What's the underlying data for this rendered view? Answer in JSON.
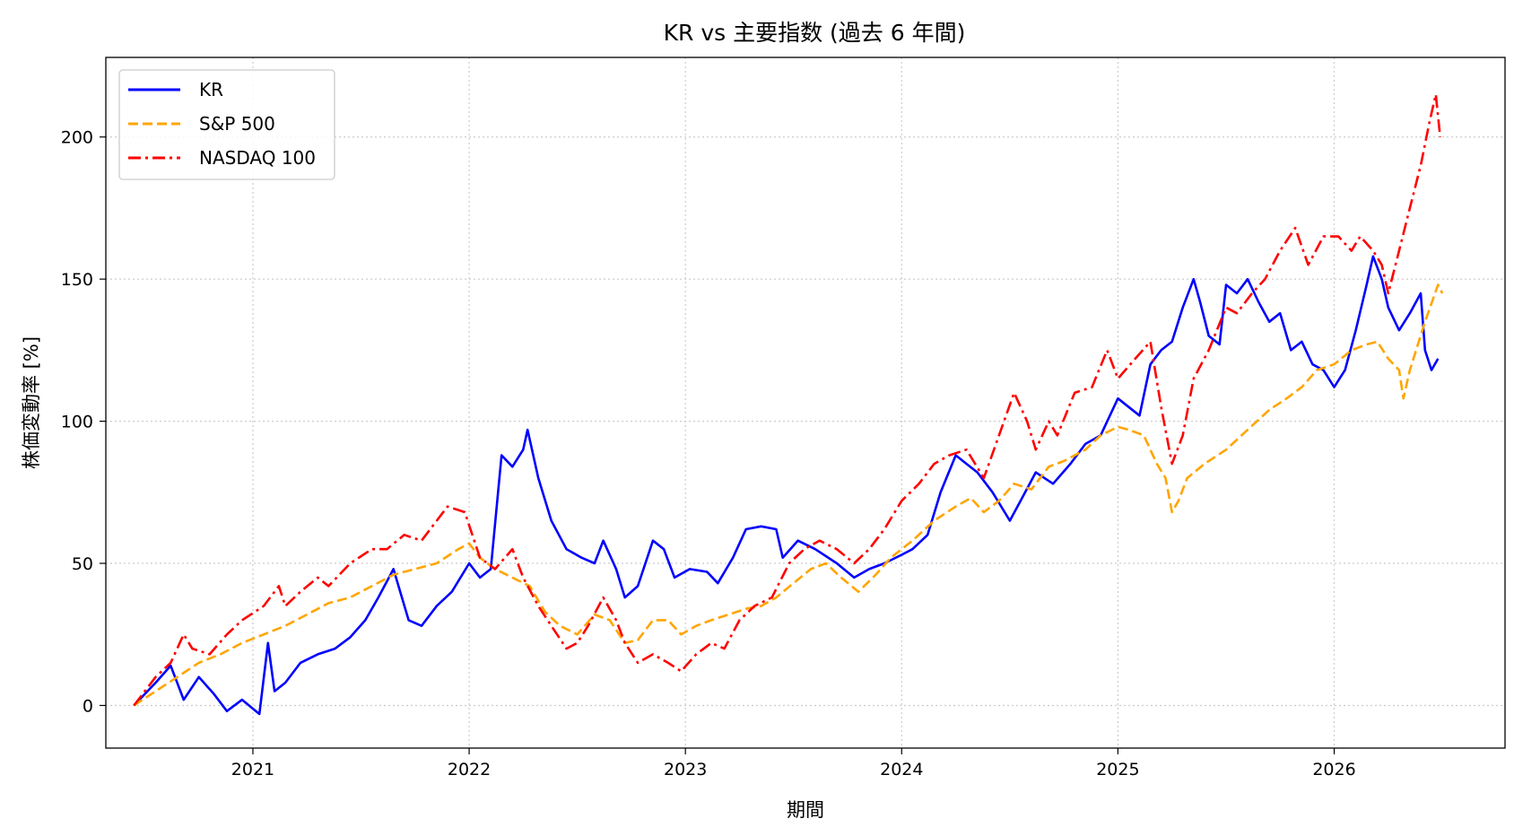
{
  "chart_data": {
    "type": "line",
    "title": "KR vs 主要指数 (過去 6 年間)",
    "xlabel": "期間",
    "ylabel": "株価変動率 [%]",
    "xlim": [
      2020.32,
      2026.79
    ],
    "ylim": [
      -15,
      228
    ],
    "x_ticks": [
      {
        "value": 2021,
        "label": "2021"
      },
      {
        "value": 2022,
        "label": "2022"
      },
      {
        "value": 2023,
        "label": "2023"
      },
      {
        "value": 2024,
        "label": "2024"
      },
      {
        "value": 2025,
        "label": "2025"
      },
      {
        "value": 2026,
        "label": "2026"
      }
    ],
    "y_ticks": [
      0,
      50,
      100,
      150,
      200
    ],
    "grid": true,
    "legend_position": "top-left",
    "series": [
      {
        "name": "KR",
        "color": "#0000ff",
        "style": "solid",
        "points": [
          [
            2020.45,
            0
          ],
          [
            2020.55,
            8
          ],
          [
            2020.62,
            14
          ],
          [
            2020.68,
            2
          ],
          [
            2020.75,
            10
          ],
          [
            2020.82,
            4
          ],
          [
            2020.88,
            -2
          ],
          [
            2020.95,
            2
          ],
          [
            2021.03,
            -3
          ],
          [
            2021.07,
            22
          ],
          [
            2021.1,
            5
          ],
          [
            2021.15,
            8
          ],
          [
            2021.22,
            15
          ],
          [
            2021.3,
            18
          ],
          [
            2021.38,
            20
          ],
          [
            2021.45,
            24
          ],
          [
            2021.52,
            30
          ],
          [
            2021.58,
            38
          ],
          [
            2021.65,
            48
          ],
          [
            2021.72,
            30
          ],
          [
            2021.78,
            28
          ],
          [
            2021.85,
            35
          ],
          [
            2021.92,
            40
          ],
          [
            2022.0,
            50
          ],
          [
            2022.05,
            45
          ],
          [
            2022.1,
            48
          ],
          [
            2022.15,
            88
          ],
          [
            2022.2,
            84
          ],
          [
            2022.25,
            90
          ],
          [
            2022.27,
            97
          ],
          [
            2022.32,
            80
          ],
          [
            2022.38,
            65
          ],
          [
            2022.45,
            55
          ],
          [
            2022.52,
            52
          ],
          [
            2022.58,
            50
          ],
          [
            2022.62,
            58
          ],
          [
            2022.68,
            48
          ],
          [
            2022.72,
            38
          ],
          [
            2022.78,
            42
          ],
          [
            2022.85,
            58
          ],
          [
            2022.9,
            55
          ],
          [
            2022.95,
            45
          ],
          [
            2023.02,
            48
          ],
          [
            2023.1,
            47
          ],
          [
            2023.15,
            43
          ],
          [
            2023.22,
            52
          ],
          [
            2023.28,
            62
          ],
          [
            2023.35,
            63
          ],
          [
            2023.42,
            62
          ],
          [
            2023.45,
            52
          ],
          [
            2023.52,
            58
          ],
          [
            2023.6,
            55
          ],
          [
            2023.7,
            50
          ],
          [
            2023.78,
            45
          ],
          [
            2023.85,
            48
          ],
          [
            2023.92,
            50
          ],
          [
            2024.0,
            53
          ],
          [
            2024.05,
            55
          ],
          [
            2024.12,
            60
          ],
          [
            2024.18,
            75
          ],
          [
            2024.25,
            88
          ],
          [
            2024.3,
            85
          ],
          [
            2024.35,
            82
          ],
          [
            2024.42,
            75
          ],
          [
            2024.5,
            65
          ],
          [
            2024.55,
            72
          ],
          [
            2024.62,
            82
          ],
          [
            2024.7,
            78
          ],
          [
            2024.78,
            85
          ],
          [
            2024.85,
            92
          ],
          [
            2024.92,
            95
          ],
          [
            2025.0,
            108
          ],
          [
            2025.05,
            105
          ],
          [
            2025.1,
            102
          ],
          [
            2025.15,
            120
          ],
          [
            2025.2,
            125
          ],
          [
            2025.25,
            128
          ],
          [
            2025.3,
            140
          ],
          [
            2025.35,
            150
          ],
          [
            2025.38,
            142
          ],
          [
            2025.42,
            130
          ],
          [
            2025.47,
            127
          ],
          [
            2025.5,
            148
          ],
          [
            2025.55,
            145
          ],
          [
            2025.6,
            150
          ],
          [
            2025.65,
            142
          ],
          [
            2025.7,
            135
          ],
          [
            2025.75,
            138
          ],
          [
            2025.8,
            125
          ],
          [
            2025.85,
            128
          ],
          [
            2025.9,
            120
          ],
          [
            2025.95,
            118
          ],
          [
            2026.0,
            112
          ],
          [
            2026.05,
            118
          ],
          [
            2026.1,
            132
          ],
          [
            2026.15,
            148
          ],
          [
            2026.18,
            158
          ],
          [
            2026.22,
            150
          ],
          [
            2026.25,
            140
          ],
          [
            2026.3,
            132
          ],
          [
            2026.35,
            138
          ],
          [
            2026.4,
            145
          ],
          [
            2026.42,
            125
          ],
          [
            2026.45,
            118
          ],
          [
            2026.48,
            122
          ]
        ]
      },
      {
        "name": "S&P 500",
        "color": "#ffa500",
        "style": "dashed",
        "points": [
          [
            2020.45,
            0
          ],
          [
            2020.55,
            5
          ],
          [
            2020.65,
            10
          ],
          [
            2020.75,
            15
          ],
          [
            2020.85,
            18
          ],
          [
            2020.95,
            22
          ],
          [
            2021.05,
            25
          ],
          [
            2021.15,
            28
          ],
          [
            2021.25,
            32
          ],
          [
            2021.35,
            36
          ],
          [
            2021.45,
            38
          ],
          [
            2021.55,
            42
          ],
          [
            2021.65,
            46
          ],
          [
            2021.75,
            48
          ],
          [
            2021.85,
            50
          ],
          [
            2021.95,
            55
          ],
          [
            2022.0,
            57
          ],
          [
            2022.05,
            52
          ],
          [
            2022.12,
            48
          ],
          [
            2022.2,
            45
          ],
          [
            2022.28,
            42
          ],
          [
            2022.35,
            33
          ],
          [
            2022.42,
            28
          ],
          [
            2022.5,
            25
          ],
          [
            2022.58,
            32
          ],
          [
            2022.65,
            30
          ],
          [
            2022.72,
            22
          ],
          [
            2022.78,
            23
          ],
          [
            2022.85,
            30
          ],
          [
            2022.92,
            30
          ],
          [
            2022.98,
            25
          ],
          [
            2023.05,
            28
          ],
          [
            2023.12,
            30
          ],
          [
            2023.2,
            32
          ],
          [
            2023.28,
            34
          ],
          [
            2023.35,
            35
          ],
          [
            2023.42,
            38
          ],
          [
            2023.5,
            43
          ],
          [
            2023.58,
            48
          ],
          [
            2023.65,
            50
          ],
          [
            2023.72,
            45
          ],
          [
            2023.8,
            40
          ],
          [
            2023.88,
            46
          ],
          [
            2023.95,
            52
          ],
          [
            2024.05,
            58
          ],
          [
            2024.15,
            65
          ],
          [
            2024.25,
            70
          ],
          [
            2024.32,
            73
          ],
          [
            2024.38,
            68
          ],
          [
            2024.45,
            72
          ],
          [
            2024.52,
            78
          ],
          [
            2024.6,
            76
          ],
          [
            2024.68,
            84
          ],
          [
            2024.75,
            86
          ],
          [
            2024.85,
            90
          ],
          [
            2024.92,
            95
          ],
          [
            2025.0,
            98
          ],
          [
            2025.05,
            97
          ],
          [
            2025.12,
            95
          ],
          [
            2025.18,
            85
          ],
          [
            2025.22,
            80
          ],
          [
            2025.25,
            68
          ],
          [
            2025.28,
            72
          ],
          [
            2025.32,
            80
          ],
          [
            2025.4,
            85
          ],
          [
            2025.5,
            90
          ],
          [
            2025.6,
            97
          ],
          [
            2025.7,
            104
          ],
          [
            2025.78,
            108
          ],
          [
            2025.85,
            112
          ],
          [
            2025.92,
            118
          ],
          [
            2026.0,
            120
          ],
          [
            2026.08,
            125
          ],
          [
            2026.15,
            127
          ],
          [
            2026.2,
            128
          ],
          [
            2026.25,
            122
          ],
          [
            2026.3,
            118
          ],
          [
            2026.32,
            108
          ],
          [
            2026.35,
            118
          ],
          [
            2026.42,
            135
          ],
          [
            2026.48,
            148
          ],
          [
            2026.5,
            145
          ]
        ]
      },
      {
        "name": "NASDAQ 100",
        "color": "#ff0000",
        "style": "dashdot",
        "points": [
          [
            2020.45,
            0
          ],
          [
            2020.55,
            10
          ],
          [
            2020.62,
            15
          ],
          [
            2020.68,
            25
          ],
          [
            2020.72,
            20
          ],
          [
            2020.8,
            18
          ],
          [
            2020.88,
            25
          ],
          [
            2020.95,
            30
          ],
          [
            2021.05,
            35
          ],
          [
            2021.12,
            42
          ],
          [
            2021.15,
            35
          ],
          [
            2021.22,
            40
          ],
          [
            2021.3,
            45
          ],
          [
            2021.35,
            42
          ],
          [
            2021.45,
            50
          ],
          [
            2021.55,
            55
          ],
          [
            2021.62,
            55
          ],
          [
            2021.7,
            60
          ],
          [
            2021.78,
            58
          ],
          [
            2021.85,
            65
          ],
          [
            2021.9,
            70
          ],
          [
            2021.98,
            68
          ],
          [
            2022.05,
            52
          ],
          [
            2022.12,
            48
          ],
          [
            2022.2,
            55
          ],
          [
            2022.25,
            45
          ],
          [
            2022.32,
            35
          ],
          [
            2022.38,
            28
          ],
          [
            2022.45,
            20
          ],
          [
            2022.5,
            22
          ],
          [
            2022.55,
            28
          ],
          [
            2022.62,
            38
          ],
          [
            2022.68,
            30
          ],
          [
            2022.72,
            22
          ],
          [
            2022.78,
            15
          ],
          [
            2022.85,
            18
          ],
          [
            2022.92,
            15
          ],
          [
            2022.98,
            12
          ],
          [
            2023.05,
            18
          ],
          [
            2023.12,
            22
          ],
          [
            2023.18,
            20
          ],
          [
            2023.25,
            30
          ],
          [
            2023.32,
            35
          ],
          [
            2023.4,
            38
          ],
          [
            2023.48,
            50
          ],
          [
            2023.55,
            55
          ],
          [
            2023.62,
            58
          ],
          [
            2023.7,
            55
          ],
          [
            2023.78,
            50
          ],
          [
            2023.85,
            55
          ],
          [
            2023.92,
            62
          ],
          [
            2024.0,
            72
          ],
          [
            2024.08,
            78
          ],
          [
            2024.15,
            85
          ],
          [
            2024.22,
            88
          ],
          [
            2024.3,
            90
          ],
          [
            2024.38,
            80
          ],
          [
            2024.45,
            95
          ],
          [
            2024.52,
            110
          ],
          [
            2024.58,
            100
          ],
          [
            2024.62,
            90
          ],
          [
            2024.68,
            100
          ],
          [
            2024.72,
            95
          ],
          [
            2024.8,
            110
          ],
          [
            2024.88,
            112
          ],
          [
            2024.95,
            125
          ],
          [
            2025.0,
            115
          ],
          [
            2025.08,
            122
          ],
          [
            2025.15,
            128
          ],
          [
            2025.2,
            105
          ],
          [
            2025.25,
            85
          ],
          [
            2025.3,
            95
          ],
          [
            2025.35,
            115
          ],
          [
            2025.42,
            125
          ],
          [
            2025.5,
            140
          ],
          [
            2025.55,
            138
          ],
          [
            2025.62,
            145
          ],
          [
            2025.68,
            150
          ],
          [
            2025.75,
            160
          ],
          [
            2025.82,
            168
          ],
          [
            2025.88,
            155
          ],
          [
            2025.95,
            165
          ],
          [
            2026.02,
            165
          ],
          [
            2026.08,
            160
          ],
          [
            2026.12,
            165
          ],
          [
            2026.18,
            160
          ],
          [
            2026.22,
            155
          ],
          [
            2026.25,
            145
          ],
          [
            2026.3,
            160
          ],
          [
            2026.35,
            175
          ],
          [
            2026.4,
            190
          ],
          [
            2026.44,
            205
          ],
          [
            2026.47,
            215
          ],
          [
            2026.49,
            200
          ]
        ]
      }
    ]
  }
}
